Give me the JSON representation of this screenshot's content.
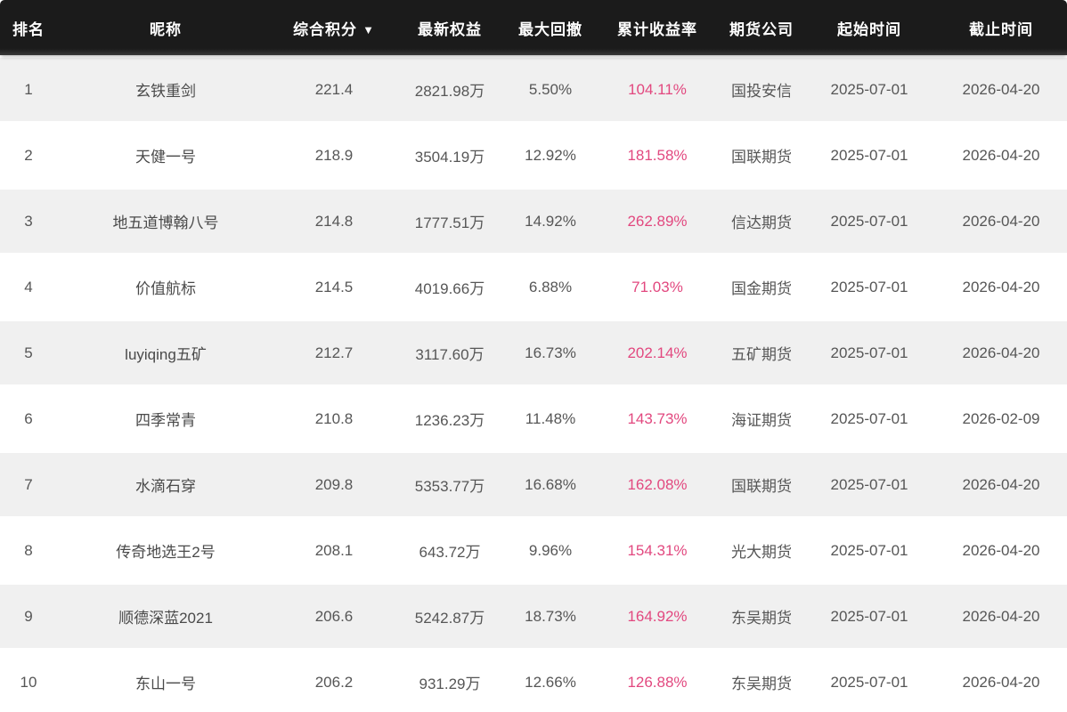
{
  "table": {
    "sort_icon": "▼",
    "columns": [
      {
        "key": "rank",
        "label": "排名",
        "sortable": false
      },
      {
        "key": "nickname",
        "label": "昵称",
        "sortable": false
      },
      {
        "key": "score",
        "label": "综合积分",
        "sortable": true,
        "sorted": "desc"
      },
      {
        "key": "equity",
        "label": "最新权益",
        "sortable": false
      },
      {
        "key": "drawdown",
        "label": "最大回撤",
        "sortable": false
      },
      {
        "key": "return",
        "label": "累计收益率",
        "sortable": false
      },
      {
        "key": "company",
        "label": "期货公司",
        "sortable": false
      },
      {
        "key": "start",
        "label": "起始时间",
        "sortable": false
      },
      {
        "key": "end",
        "label": "截止时间",
        "sortable": false
      }
    ],
    "rows": [
      {
        "rank": "1",
        "nickname": "玄铁重剑",
        "score": "221.4",
        "equity": "2821.98万",
        "drawdown": "5.50%",
        "return": "104.11%",
        "company": "国投安信",
        "start": "2025-07-01",
        "end": "2026-04-20"
      },
      {
        "rank": "2",
        "nickname": "天健一号",
        "score": "218.9",
        "equity": "3504.19万",
        "drawdown": "12.92%",
        "return": "181.58%",
        "company": "国联期货",
        "start": "2025-07-01",
        "end": "2026-04-20"
      },
      {
        "rank": "3",
        "nickname": "地五道博翰八号",
        "score": "214.8",
        "equity": "1777.51万",
        "drawdown": "14.92%",
        "return": "262.89%",
        "company": "信达期货",
        "start": "2025-07-01",
        "end": "2026-04-20"
      },
      {
        "rank": "4",
        "nickname": "价值航标",
        "score": "214.5",
        "equity": "4019.66万",
        "drawdown": "6.88%",
        "return": "71.03%",
        "company": "国金期货",
        "start": "2025-07-01",
        "end": "2026-04-20"
      },
      {
        "rank": "5",
        "nickname": "luyiqing五矿",
        "score": "212.7",
        "equity": "3117.60万",
        "drawdown": "16.73%",
        "return": "202.14%",
        "company": "五矿期货",
        "start": "2025-07-01",
        "end": "2026-04-20"
      },
      {
        "rank": "6",
        "nickname": "四季常青",
        "score": "210.8",
        "equity": "1236.23万",
        "drawdown": "11.48%",
        "return": "143.73%",
        "company": "海证期货",
        "start": "2025-07-01",
        "end": "2026-02-09"
      },
      {
        "rank": "7",
        "nickname": "水滴石穿",
        "score": "209.8",
        "equity": "5353.77万",
        "drawdown": "16.68%",
        "return": "162.08%",
        "company": "国联期货",
        "start": "2025-07-01",
        "end": "2026-04-20"
      },
      {
        "rank": "8",
        "nickname": "传奇地选王2号",
        "score": "208.1",
        "equity": "643.72万",
        "drawdown": "9.96%",
        "return": "154.31%",
        "company": "光大期货",
        "start": "2025-07-01",
        "end": "2026-04-20"
      },
      {
        "rank": "9",
        "nickname": "顺德深蓝2021",
        "score": "206.6",
        "equity": "5242.87万",
        "drawdown": "18.73%",
        "return": "164.92%",
        "company": "东吴期货",
        "start": "2025-07-01",
        "end": "2026-04-20"
      },
      {
        "rank": "10",
        "nickname": "东山一号",
        "score": "206.2",
        "equity": "931.29万",
        "drawdown": "12.66%",
        "return": "126.88%",
        "company": "东吴期货",
        "start": "2025-07-01",
        "end": "2026-04-20"
      }
    ]
  },
  "colors": {
    "header_bg": "#1b1b1b",
    "header_text": "#ffffff",
    "row_bg": "#ffffff",
    "row_alt_bg": "#f0f0f0",
    "text_color": "#565656",
    "nick_color": "#4a4a4a",
    "accent": "#e2487f"
  }
}
